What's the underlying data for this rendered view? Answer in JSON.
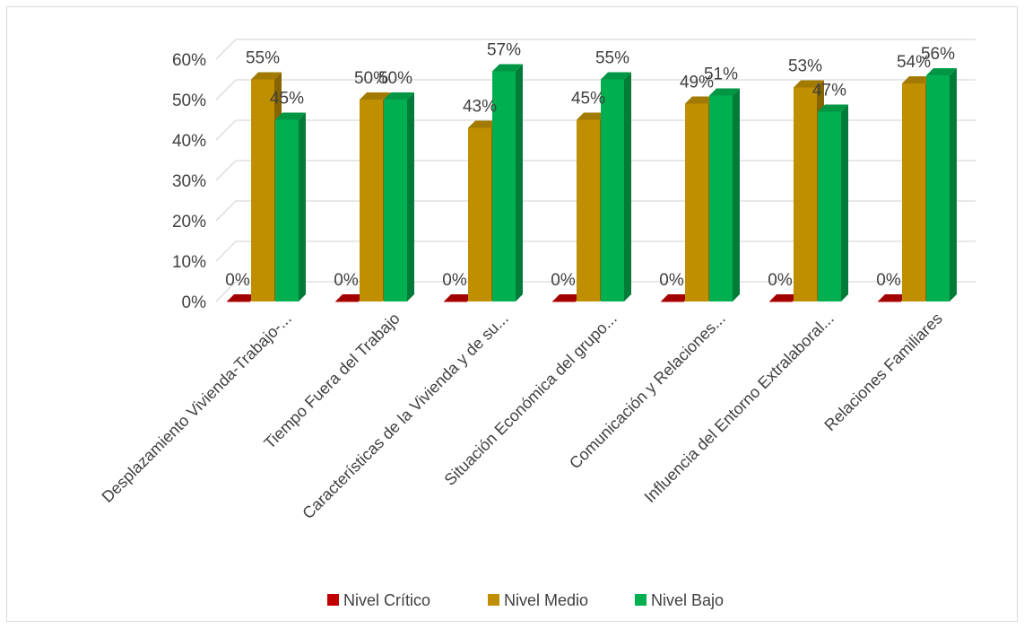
{
  "chart_data": {
    "type": "bar",
    "title": "",
    "xlabel": "",
    "ylabel": "",
    "ylim": [
      0,
      0.6
    ],
    "yticks": [
      "0%",
      "10%",
      "20%",
      "30%",
      "40%",
      "50%",
      "60%"
    ],
    "grid": true,
    "legend_position": "bottom",
    "categories": [
      "Desplazamiento Vivienda-Trabajo-...",
      "Tiempo Fuera del Trabajo",
      "Características de la Vivienda y de su...",
      "Situación Económica del grupo...",
      "Comunicación y Relaciones...",
      "Influencia del Entorno Extralaboral...",
      "Relaciones Familiares"
    ],
    "series": [
      {
        "name": "Nivel Crítico",
        "color": "#c00000",
        "values": [
          0,
          0,
          0,
          0,
          0,
          0,
          0
        ],
        "labels": [
          "0%",
          "0%",
          "0%",
          "0%",
          "0%",
          "0%",
          "0%"
        ]
      },
      {
        "name": "Nivel Medio",
        "color": "#bf8f00",
        "values": [
          0.55,
          0.5,
          0.43,
          0.45,
          0.49,
          0.53,
          0.54
        ],
        "labels": [
          "55%",
          "50%",
          "43%",
          "45%",
          "49%",
          "53%",
          "54%"
        ]
      },
      {
        "name": "Nivel Bajo",
        "color": "#00b050",
        "values": [
          0.45,
          0.5,
          0.57,
          0.55,
          0.51,
          0.47,
          0.56
        ],
        "labels": [
          "45%",
          "50%",
          "57%",
          "55%",
          "51%",
          "47%",
          "56%"
        ]
      }
    ]
  }
}
